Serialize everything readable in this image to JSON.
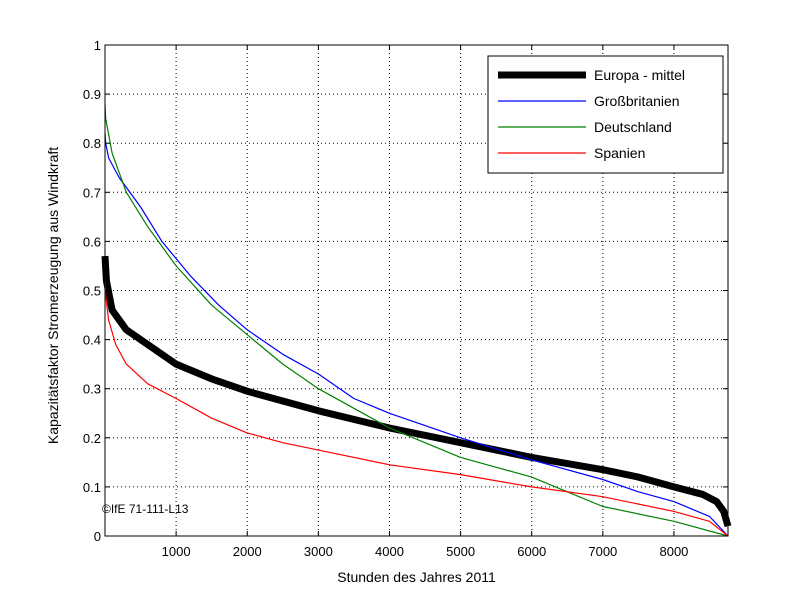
{
  "chart_data": {
    "type": "line",
    "title": "",
    "xlabel": "Stunden des Jahres 2011",
    "ylabel": "Kapazitätsfaktor Stromerzeugung aus Windkraft",
    "xlim": [
      0,
      8760
    ],
    "ylim": [
      0,
      1
    ],
    "xticks": [
      1000,
      2000,
      3000,
      4000,
      5000,
      6000,
      7000,
      8000
    ],
    "yticks": [
      0,
      0.1,
      0.2,
      0.3,
      0.4,
      0.5,
      0.6,
      0.7,
      0.8,
      0.9,
      1
    ],
    "grid": true,
    "legend_position": "top-right",
    "annotation": "©IfE 71-111-L13",
    "series": [
      {
        "name": "Europa - mittel",
        "color": "#000000",
        "thick": true,
        "x": [
          0,
          20,
          100,
          300,
          600,
          1000,
          1500,
          2000,
          3000,
          4000,
          5000,
          6000,
          7000,
          7500,
          8000,
          8400,
          8600,
          8700,
          8760
        ],
        "y": [
          0.57,
          0.52,
          0.46,
          0.42,
          0.39,
          0.35,
          0.32,
          0.295,
          0.255,
          0.22,
          0.19,
          0.16,
          0.135,
          0.12,
          0.1,
          0.085,
          0.07,
          0.05,
          0.02
        ]
      },
      {
        "name": "Großbritanien",
        "color": "#0000ff",
        "thick": false,
        "x": [
          0,
          10,
          50,
          200,
          500,
          800,
          1200,
          1600,
          2000,
          2500,
          3000,
          3500,
          4000,
          5000,
          6000,
          7000,
          7500,
          8000,
          8500,
          8760
        ],
        "y": [
          0.82,
          0.8,
          0.77,
          0.73,
          0.67,
          0.6,
          0.53,
          0.47,
          0.42,
          0.37,
          0.33,
          0.28,
          0.25,
          0.2,
          0.155,
          0.115,
          0.09,
          0.07,
          0.04,
          0.0
        ]
      },
      {
        "name": "Deutschland",
        "color": "#008000",
        "thick": false,
        "x": [
          0,
          10,
          100,
          300,
          600,
          1000,
          1500,
          2000,
          2500,
          3000,
          3500,
          4000,
          4500,
          5000,
          5500,
          6000,
          6500,
          7000,
          8000,
          8760
        ],
        "y": [
          0.88,
          0.85,
          0.78,
          0.7,
          0.63,
          0.55,
          0.47,
          0.41,
          0.35,
          0.3,
          0.26,
          0.22,
          0.19,
          0.16,
          0.14,
          0.12,
          0.09,
          0.06,
          0.03,
          0.0
        ]
      },
      {
        "name": "Spanien",
        "color": "#ff0000",
        "thick": false,
        "x": [
          0,
          10,
          50,
          150,
          300,
          600,
          1000,
          1500,
          2000,
          2500,
          3000,
          4000,
          5000,
          6000,
          7000,
          8000,
          8500,
          8760
        ],
        "y": [
          0.52,
          0.49,
          0.44,
          0.39,
          0.35,
          0.31,
          0.28,
          0.24,
          0.21,
          0.19,
          0.175,
          0.145,
          0.125,
          0.1,
          0.08,
          0.05,
          0.03,
          0.0
        ]
      }
    ]
  }
}
